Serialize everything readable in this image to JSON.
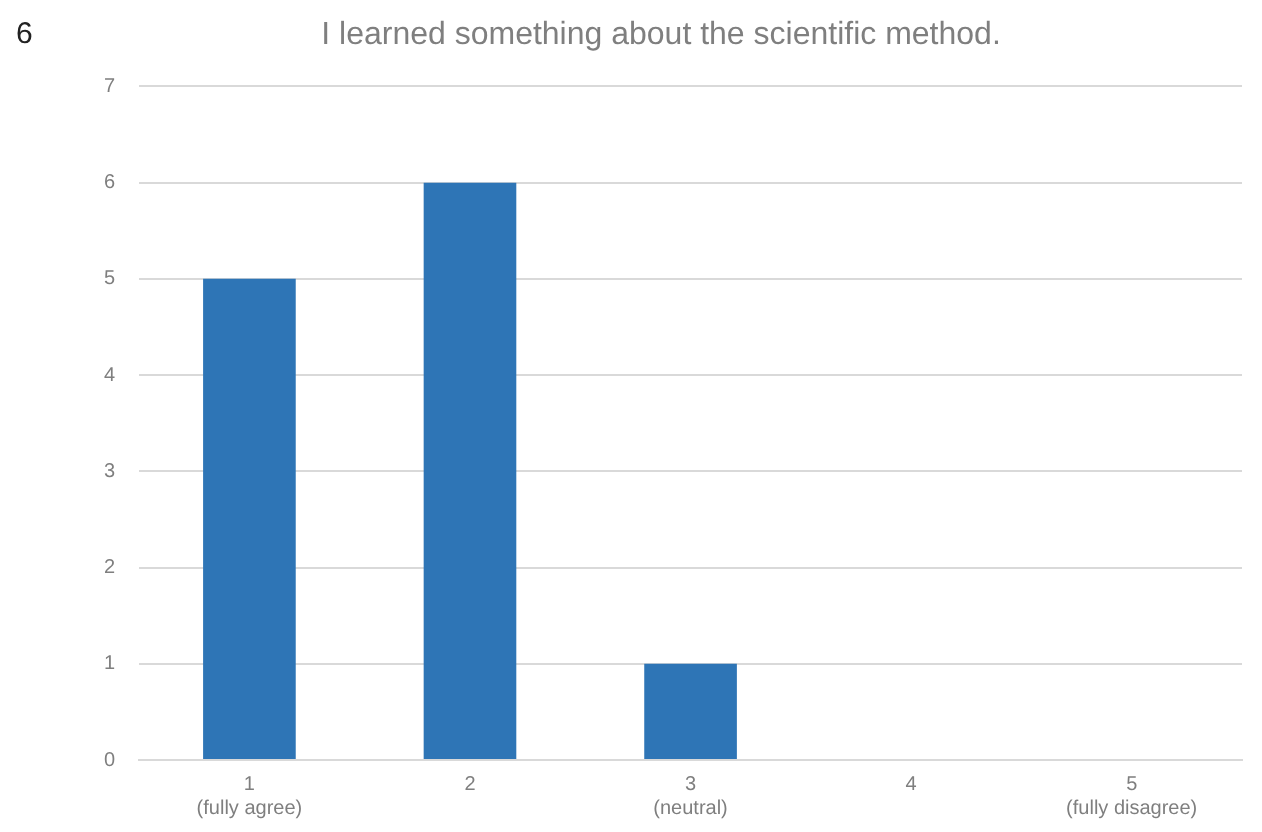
{
  "chart_data": {
    "type": "bar",
    "title": "I learned something about the scientific method.",
    "annotations": [
      "6"
    ],
    "categories": [
      "1\n(fully agree)",
      "2",
      "3\n(neutral)",
      "4",
      "5\n(fully disagree)"
    ],
    "values": [
      5,
      6,
      1,
      0,
      0
    ],
    "color": "#2e75b6",
    "ylim": [
      0,
      7
    ],
    "yticks": [
      0,
      1,
      2,
      3,
      4,
      5,
      6,
      7
    ],
    "grid": "y",
    "legend": false
  }
}
